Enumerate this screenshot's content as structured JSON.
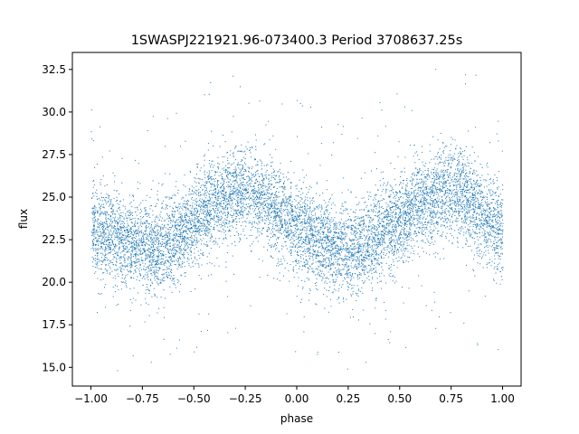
{
  "chart_data": {
    "type": "scatter",
    "title": "1SWASPJ221921.96-073400.3 Period 3708637.25s",
    "xlabel": "phase",
    "ylabel": "flux",
    "xlim": [
      -1.09,
      1.09
    ],
    "ylim": [
      13.9,
      33.5
    ],
    "xticks": [
      -1.0,
      -0.75,
      -0.5,
      -0.25,
      0.0,
      0.25,
      0.5,
      0.75,
      1.0
    ],
    "xtick_labels": [
      "−1.00",
      "−0.75",
      "−0.50",
      "−0.25",
      "0.00",
      "0.25",
      "0.50",
      "0.75",
      "1.00"
    ],
    "yticks": [
      15.0,
      17.5,
      20.0,
      22.5,
      25.0,
      27.5,
      30.0,
      32.5
    ],
    "ytick_labels": [
      "15.0",
      "17.5",
      "20.0",
      "22.5",
      "25.0",
      "27.5",
      "30.0",
      "32.5"
    ],
    "grid": false,
    "series": [
      {
        "color": "#1f77b4",
        "trend_phase": [
          -1.0,
          -0.9,
          -0.8,
          -0.7,
          -0.6,
          -0.5,
          -0.4,
          -0.3,
          -0.25,
          -0.2,
          -0.1,
          0.0,
          0.1,
          0.2,
          0.25,
          0.3,
          0.4,
          0.5,
          0.6,
          0.7,
          0.75,
          0.8,
          0.9,
          1.0
        ],
        "trend_flux": [
          23.0,
          22.8,
          22.3,
          21.9,
          22.6,
          23.5,
          24.6,
          25.3,
          25.5,
          25.2,
          24.2,
          23.2,
          22.6,
          22.0,
          21.8,
          22.0,
          22.9,
          23.6,
          24.5,
          25.3,
          25.5,
          25.2,
          24.0,
          23.0
        ],
        "scatter_sigma": 1.3,
        "point_count": 9000
      }
    ]
  }
}
